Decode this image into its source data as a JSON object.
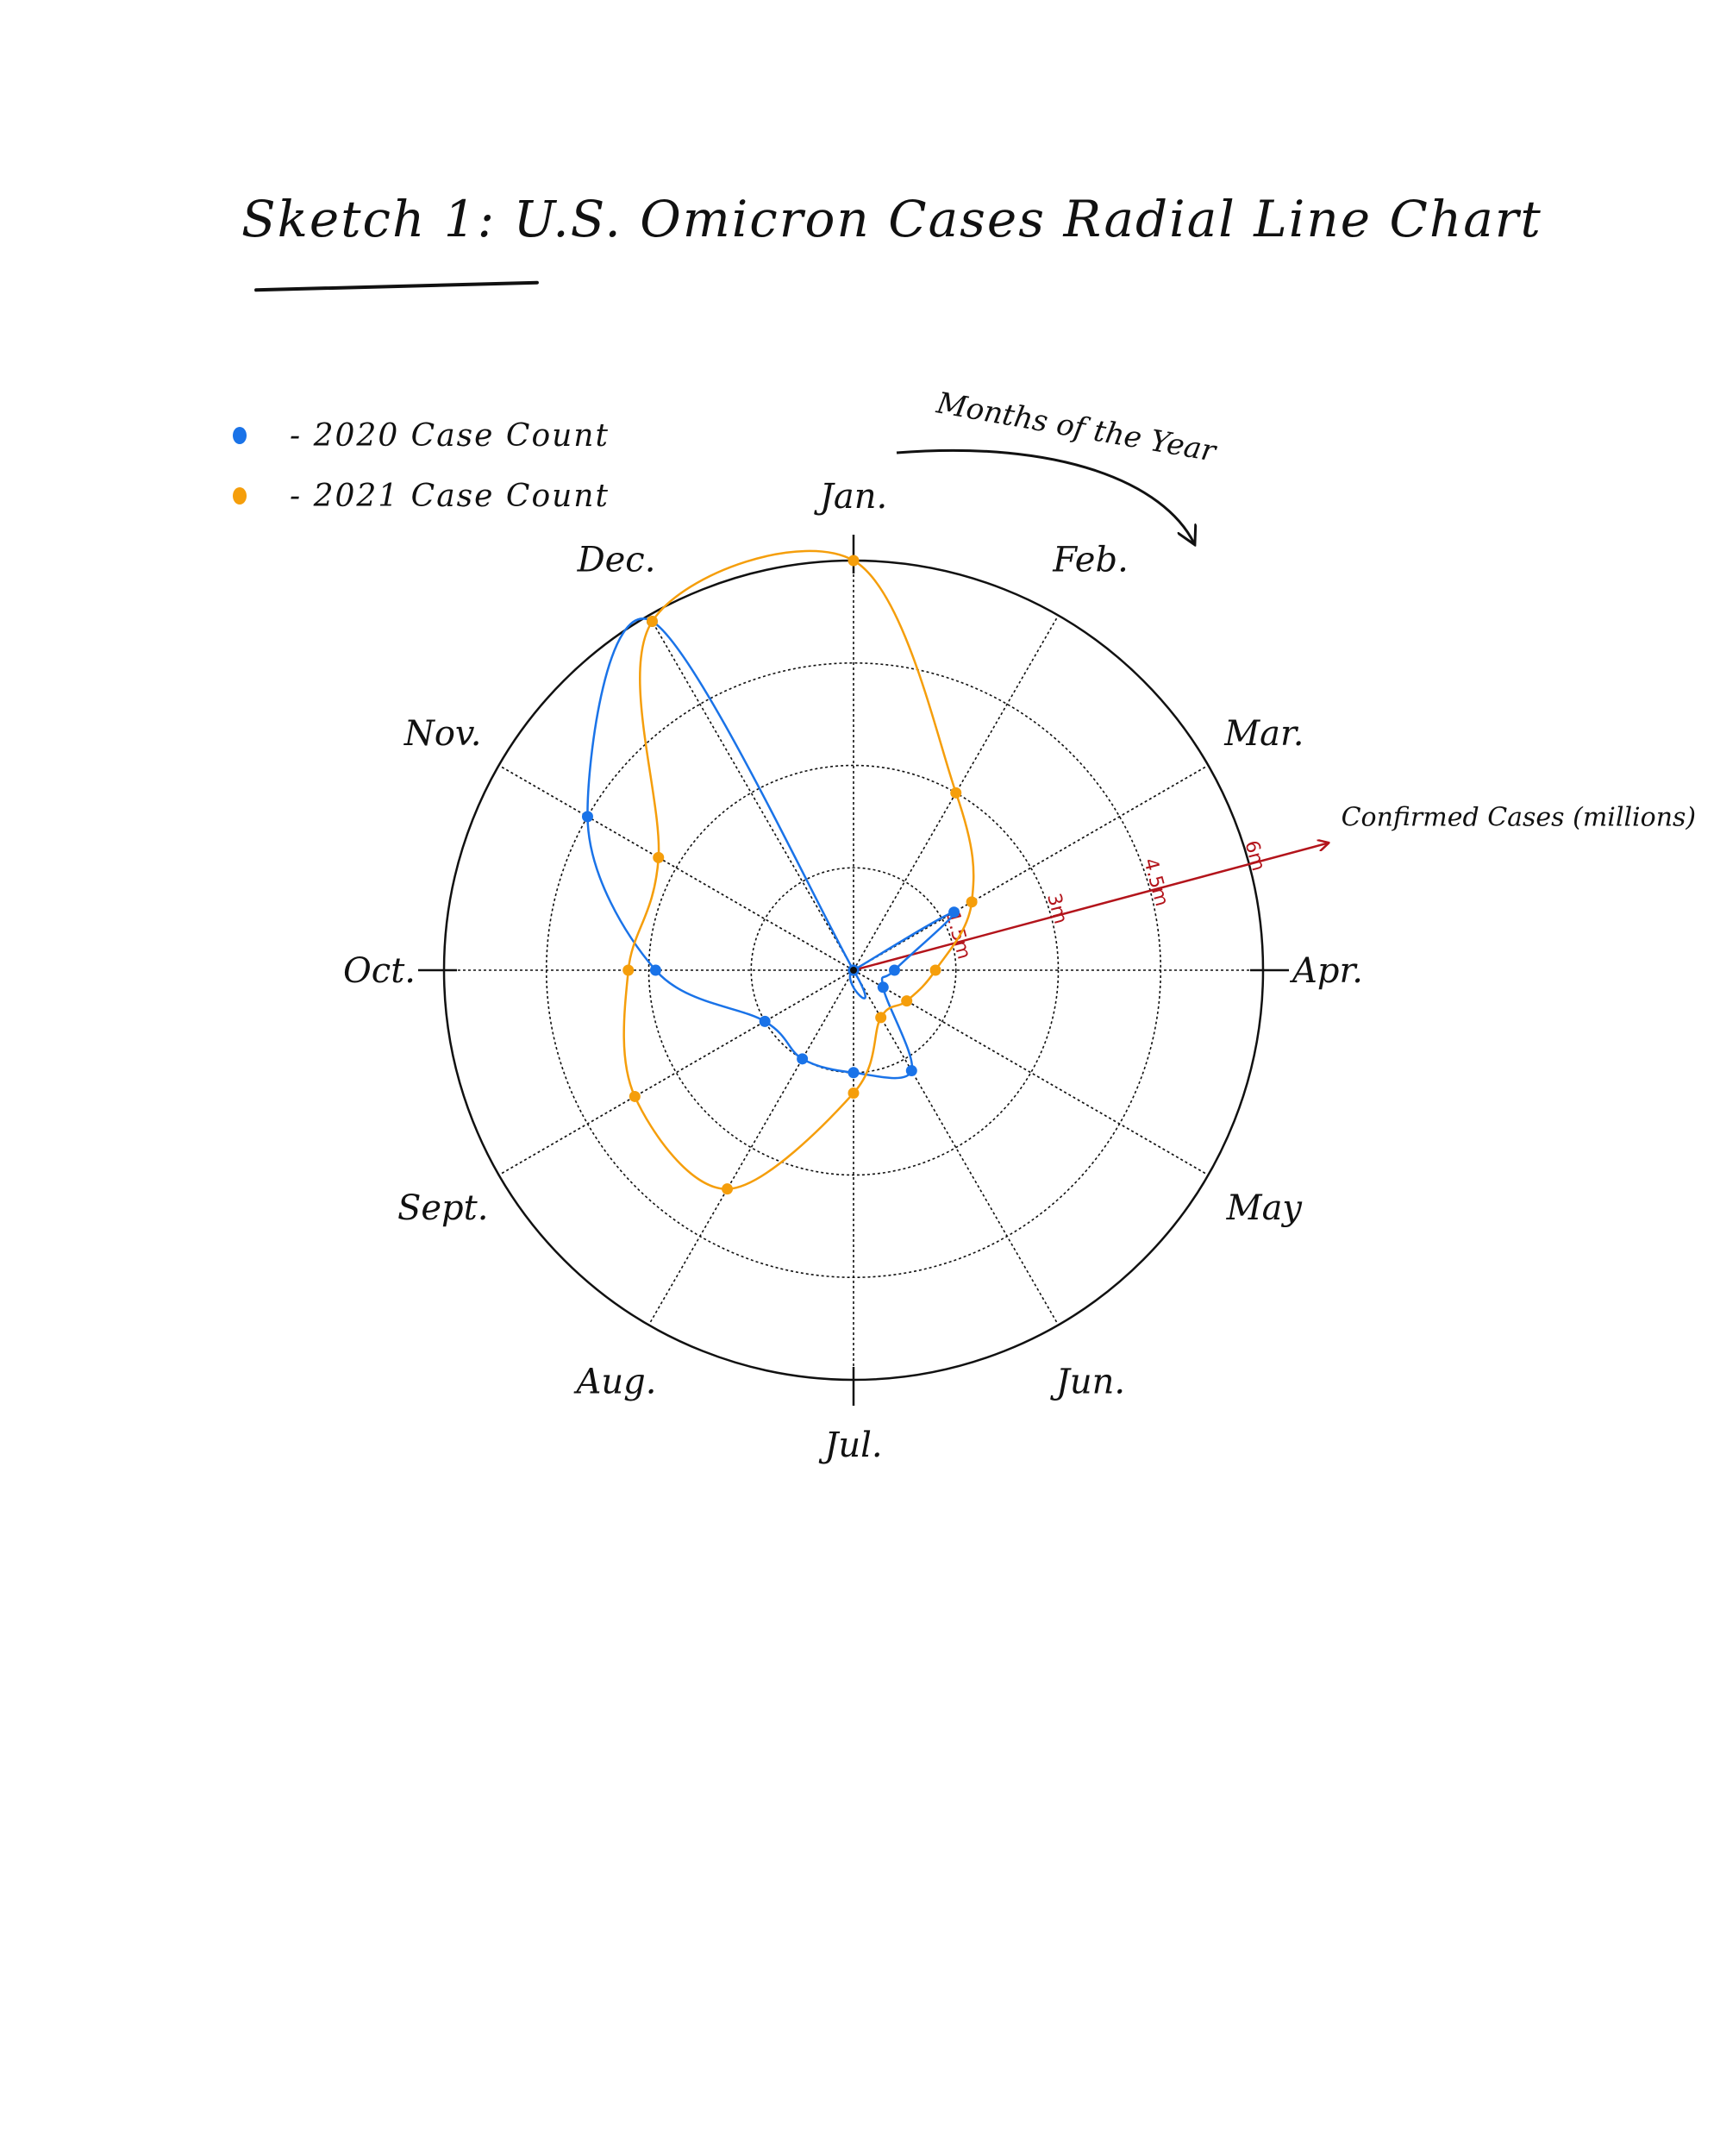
{
  "title": "Sketch 1: U.S. Omicron Cases Radial Line Chart",
  "colors": {
    "series_2020": "#1a73e8",
    "series_2021": "#f59e0b",
    "radial_axis": "#b3141b",
    "ink": "#111111"
  },
  "chart_data": {
    "type": "line",
    "polar": true,
    "angular_axis_label": "Months of the Year",
    "radial_axis_label": "Confirmed Cases (millions)",
    "radial_tick_labels": [
      "1.5m",
      "3m",
      "4.5m",
      "6m"
    ],
    "radial_ticks": [
      1.5,
      3,
      4.5,
      6
    ],
    "rlim": [
      0,
      6
    ],
    "grid": true,
    "legend": "top-left",
    "categories": [
      "Jan.",
      "Feb.",
      "Mar.",
      "Apr.",
      "May",
      "Jun.",
      "Jul.",
      "Aug.",
      "Sept.",
      "Oct.",
      "Nov.",
      "Dec."
    ],
    "series": [
      {
        "name": "- 2020 Case Count",
        "values": [
          0,
          0,
          1.7,
          0.6,
          0.5,
          1.7,
          1.5,
          1.5,
          1.5,
          2.9,
          4.5,
          5.9
        ]
      },
      {
        "name": "- 2021 Case Count",
        "values": [
          6.0,
          3.0,
          2.0,
          1.2,
          0.9,
          0.8,
          1.8,
          3.7,
          3.7,
          3.3,
          3.3,
          5.9
        ]
      }
    ]
  }
}
